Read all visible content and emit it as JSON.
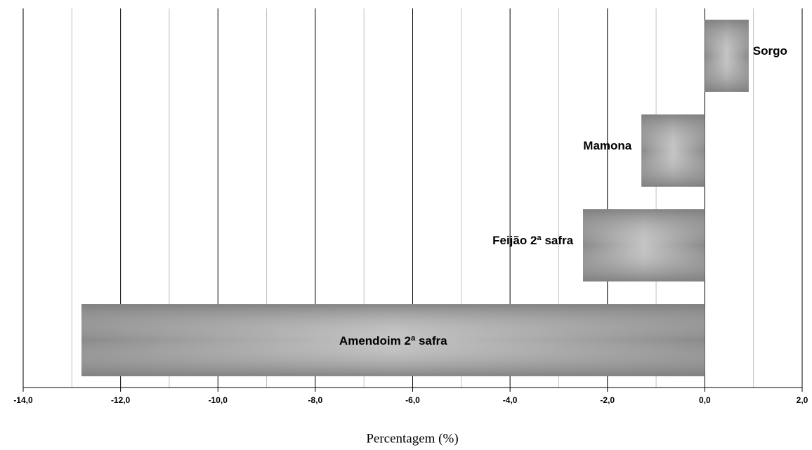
{
  "chart_data": {
    "type": "barh",
    "categories": [
      "Sorgo",
      "Mamona",
      "Feijão 2ª safra",
      "Amendoim 2ª safra"
    ],
    "values": [
      0.9,
      -1.3,
      -2.5,
      -12.8
    ],
    "color": "#8c8c8c",
    "xlabel": "Percentagem (%)",
    "xlim": [
      -14,
      2
    ],
    "xticks": [
      {
        "value": -14,
        "label": "-14,0"
      },
      {
        "value": -12,
        "label": "-12,0"
      },
      {
        "value": -10,
        "label": "-10,0"
      },
      {
        "value": -8,
        "label": "-8,0"
      },
      {
        "value": -6,
        "label": "-6,0"
      },
      {
        "value": -4,
        "label": "-4,0"
      },
      {
        "value": -2,
        "label": "-2,0"
      },
      {
        "value": 0,
        "label": "0,0"
      },
      {
        "value": 2,
        "label": "2,0"
      }
    ],
    "minor_xticks": [
      -13,
      -11,
      -9,
      -7,
      -5,
      -3,
      -1,
      1
    ],
    "grid": true
  }
}
